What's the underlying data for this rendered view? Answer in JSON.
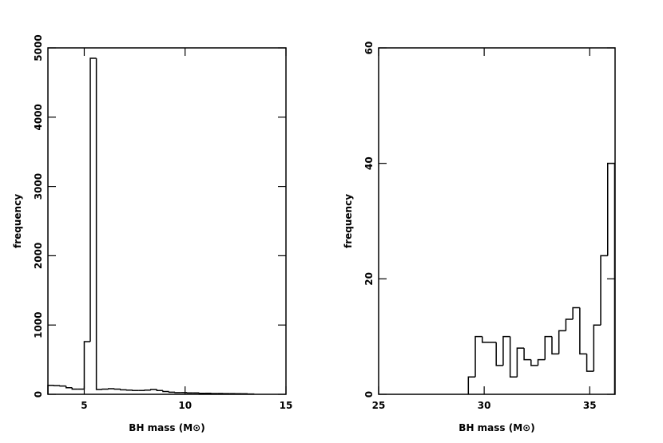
{
  "chart_data": [
    {
      "type": "histogram",
      "xlabel": "BH mass (M⊙)",
      "ylabel": "frequency",
      "color": "#000000",
      "bins": [
        3.2,
        3.5,
        3.8,
        4.1,
        4.4,
        4.7,
        5.0,
        5.3,
        5.6,
        5.9,
        6.2,
        6.5,
        6.8,
        7.1,
        7.4,
        7.7,
        8.0,
        8.3,
        8.6,
        8.9,
        9.2,
        9.5,
        9.8,
        10.1,
        10.4,
        10.7,
        11.0,
        11.3,
        11.6,
        11.9,
        12.2,
        12.5,
        12.8,
        13.1,
        13.4
      ],
      "values": [
        130,
        125,
        120,
        95,
        75,
        75,
        760,
        4850,
        70,
        75,
        80,
        75,
        65,
        60,
        55,
        55,
        60,
        70,
        55,
        40,
        30,
        25,
        25,
        20,
        20,
        15,
        15,
        12,
        12,
        10,
        10,
        8,
        8,
        5
      ],
      "xlim": [
        3.2,
        15
      ],
      "xticks": [
        5,
        10,
        15
      ],
      "ylim": [
        0,
        5000
      ],
      "yticks": [
        0,
        1000,
        2000,
        3000,
        4000,
        5000
      ]
    },
    {
      "type": "histogram",
      "xlabel": "BH mass (M⊙)",
      "ylabel": "frequency",
      "color": "#000000",
      "bins": [
        29.25,
        29.58,
        29.91,
        30.24,
        30.57,
        30.9,
        31.23,
        31.56,
        31.89,
        32.22,
        32.55,
        32.88,
        33.21,
        33.54,
        33.87,
        34.2,
        34.53,
        34.86,
        35.19,
        35.52,
        35.85,
        36.18
      ],
      "values": [
        3,
        10,
        9,
        9,
        5,
        10,
        3,
        8,
        6,
        5,
        6,
        10,
        7,
        11,
        13,
        15,
        7,
        4,
        12,
        24,
        40
      ],
      "xlim": [
        25,
        36.2
      ],
      "xticks": [
        25,
        30,
        35
      ],
      "ylim": [
        0,
        60
      ],
      "yticks": [
        0,
        20,
        40,
        60
      ]
    }
  ]
}
